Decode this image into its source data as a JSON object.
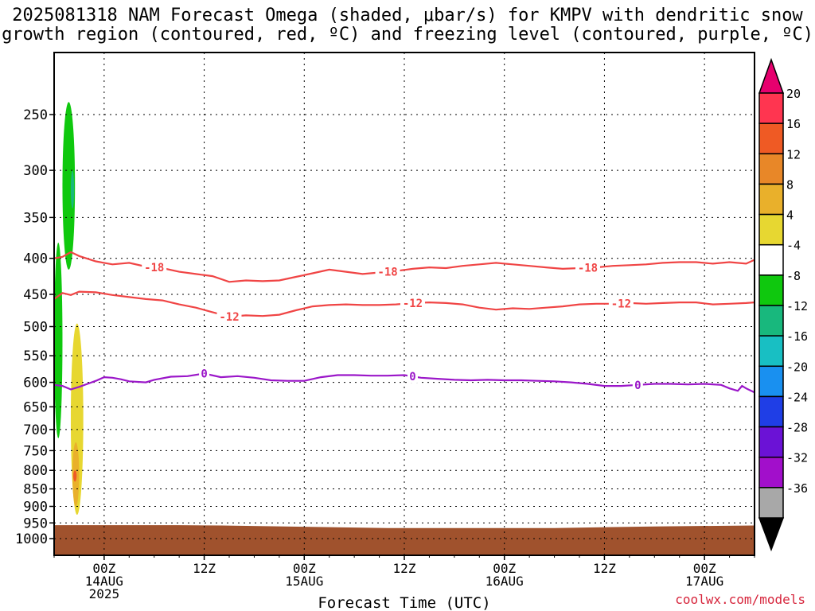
{
  "title_lines": [
    "2025081318 NAM Forecast Omega (shaded, μbar/s) for KMPV with dendritic snow",
    "growth region (contoured, red, ºC) and freezing level (contoured, purple, ºC)"
  ],
  "credit": "coolwx.com/models",
  "chart_data": {
    "type": "contour",
    "xlabel": "Forecast Time (UTC)",
    "x_forecast_hours": [
      0,
      84
    ],
    "x_ticks": [
      {
        "hour": 6,
        "label": "00Z",
        "sub": [
          "14AUG",
          "2025"
        ]
      },
      {
        "hour": 18,
        "label": "12Z",
        "sub": []
      },
      {
        "hour": 30,
        "label": "00Z",
        "sub": [
          "15AUG"
        ]
      },
      {
        "hour": 42,
        "label": "12Z",
        "sub": []
      },
      {
        "hour": 54,
        "label": "00Z",
        "sub": [
          "16AUG"
        ]
      },
      {
        "hour": 66,
        "label": "12Z",
        "sub": []
      },
      {
        "hour": 78,
        "label": "00Z",
        "sub": [
          "17AUG"
        ]
      }
    ],
    "y_axis": "pressure (hPa), log scale, inverted",
    "y_ticks": [
      250,
      300,
      350,
      400,
      450,
      500,
      550,
      600,
      650,
      700,
      750,
      800,
      850,
      900,
      950,
      1000
    ],
    "ylim": [
      1050,
      200
    ],
    "grid": true,
    "colorbar": {
      "labels": [
        "20",
        "16",
        "12",
        "8",
        "4",
        "-4",
        "-8",
        "-12",
        "-16",
        "-20",
        "-24",
        "-28",
        "-32",
        "-36"
      ],
      "colors": [
        "#ff3550",
        "#ef5a24",
        "#e88728",
        "#e9b02b",
        "#e7d731",
        "#ffffff",
        "#0fc80e",
        "#18b87d",
        "#18bfc3",
        "#1990f0",
        "#1f3ee6",
        "#6b12d6",
        "#a20fcb",
        "#a8a8a8"
      ],
      "top_arrow_color": "#e6006e",
      "bottom_arrow_color": "#000000"
    },
    "series": [
      {
        "name": "-18",
        "color": "#f04545",
        "points": [
          [
            0,
            400
          ],
          [
            1,
            398
          ],
          [
            2,
            392
          ],
          [
            3,
            397
          ],
          [
            5,
            404
          ],
          [
            7,
            408
          ],
          [
            9,
            406
          ],
          [
            11,
            411
          ],
          [
            13,
            413
          ],
          [
            15,
            418
          ],
          [
            17,
            421
          ],
          [
            19,
            424
          ],
          [
            21,
            432
          ],
          [
            23,
            430
          ],
          [
            25,
            431
          ],
          [
            27,
            430
          ],
          [
            29,
            425
          ],
          [
            31,
            420
          ],
          [
            33,
            415
          ],
          [
            35,
            418
          ],
          [
            37,
            421
          ],
          [
            39,
            419
          ],
          [
            41,
            417
          ],
          [
            43,
            414
          ],
          [
            45,
            412
          ],
          [
            47,
            413
          ],
          [
            49,
            410
          ],
          [
            51,
            408
          ],
          [
            53,
            406
          ],
          [
            55,
            408
          ],
          [
            57,
            410
          ],
          [
            59,
            412
          ],
          [
            61,
            414
          ],
          [
            63,
            413
          ],
          [
            65,
            412
          ],
          [
            67,
            410
          ],
          [
            69,
            409
          ],
          [
            71,
            408
          ],
          [
            73,
            406
          ],
          [
            75,
            405
          ],
          [
            77,
            405
          ],
          [
            79,
            407
          ],
          [
            81,
            405
          ],
          [
            83,
            407
          ],
          [
            84,
            402
          ]
        ],
        "labels": [
          12,
          40,
          64
        ]
      },
      {
        "name": "-12",
        "color": "#f04545",
        "points": [
          [
            0,
            457
          ],
          [
            1,
            448
          ],
          [
            2,
            451
          ],
          [
            3,
            446
          ],
          [
            5,
            447
          ],
          [
            7,
            451
          ],
          [
            9,
            454
          ],
          [
            11,
            457
          ],
          [
            13,
            459
          ],
          [
            15,
            465
          ],
          [
            17,
            470
          ],
          [
            19,
            477
          ],
          [
            21,
            484
          ],
          [
            23,
            482
          ],
          [
            25,
            483
          ],
          [
            27,
            481
          ],
          [
            29,
            474
          ],
          [
            31,
            468
          ],
          [
            33,
            466
          ],
          [
            35,
            465
          ],
          [
            37,
            466
          ],
          [
            39,
            466
          ],
          [
            41,
            465
          ],
          [
            43,
            463
          ],
          [
            45,
            462
          ],
          [
            47,
            463
          ],
          [
            49,
            465
          ],
          [
            51,
            470
          ],
          [
            53,
            473
          ],
          [
            55,
            471
          ],
          [
            57,
            472
          ],
          [
            59,
            470
          ],
          [
            61,
            468
          ],
          [
            63,
            465
          ],
          [
            65,
            464
          ],
          [
            67,
            464
          ],
          [
            69,
            463
          ],
          [
            71,
            464
          ],
          [
            73,
            463
          ],
          [
            75,
            462
          ],
          [
            77,
            462
          ],
          [
            79,
            465
          ],
          [
            81,
            464
          ],
          [
            83,
            463
          ],
          [
            84,
            462
          ]
        ],
        "labels": [
          21,
          43,
          68
        ]
      },
      {
        "name": "0",
        "color": "#9b17c9",
        "points": [
          [
            0,
            605
          ],
          [
            1,
            607
          ],
          [
            2,
            614
          ],
          [
            3,
            609
          ],
          [
            4,
            603
          ],
          [
            5,
            597
          ],
          [
            6,
            590
          ],
          [
            7,
            591
          ],
          [
            8,
            594
          ],
          [
            9,
            598
          ],
          [
            11,
            600
          ],
          [
            12,
            595
          ],
          [
            14,
            589
          ],
          [
            16,
            588
          ],
          [
            18,
            583
          ],
          [
            20,
            590
          ],
          [
            22,
            588
          ],
          [
            24,
            591
          ],
          [
            26,
            596
          ],
          [
            28,
            597
          ],
          [
            30,
            597
          ],
          [
            32,
            590
          ],
          [
            34,
            586
          ],
          [
            36,
            586
          ],
          [
            38,
            587
          ],
          [
            40,
            587
          ],
          [
            42,
            586
          ],
          [
            44,
            591
          ],
          [
            46,
            593
          ],
          [
            48,
            595
          ],
          [
            50,
            596
          ],
          [
            52,
            595
          ],
          [
            54,
            596
          ],
          [
            56,
            596
          ],
          [
            58,
            597
          ],
          [
            60,
            598
          ],
          [
            62,
            600
          ],
          [
            64,
            603
          ],
          [
            66,
            607
          ],
          [
            68,
            607
          ],
          [
            70,
            605
          ],
          [
            72,
            603
          ],
          [
            74,
            603
          ],
          [
            76,
            604
          ],
          [
            78,
            603
          ],
          [
            80,
            605
          ],
          [
            81,
            612
          ],
          [
            82,
            617
          ],
          [
            82.5,
            607
          ],
          [
            83,
            612
          ],
          [
            84,
            620
          ]
        ],
        "labels": [
          18,
          43,
          70
        ]
      }
    ],
    "omega_shading": [
      {
        "value_range": [
          -8,
          -4
        ],
        "color": "#0fc80e",
        "description": "upward motion, upper levels",
        "hour_range": [
          1,
          2.5
        ],
        "pressure_range": [
          240,
          415
        ]
      },
      {
        "value_range": [
          -12,
          -8
        ],
        "color": "#18b87d",
        "description": "upward motion core",
        "hour_range": [
          2,
          2.4
        ],
        "pressure_range": [
          300,
          340
        ]
      },
      {
        "value_range": [
          -8,
          -4
        ],
        "color": "#0fc80e",
        "description": "upward motion, lower levels",
        "hour_range": [
          0,
          1
        ],
        "pressure_range": [
          380,
          720
        ]
      },
      {
        "value_range": [
          4,
          8
        ],
        "color": "#e7d731",
        "description": "downward motion",
        "hour_range": [
          2,
          3.5
        ],
        "pressure_range": [
          495,
          925
        ]
      },
      {
        "value_range": [
          8,
          12
        ],
        "color": "#e9b02b",
        "description": "downward motion core",
        "hour_range": [
          2.2,
          3
        ],
        "pressure_range": [
          730,
          900
        ]
      },
      {
        "value_range": [
          12,
          16
        ],
        "color": "#ef5a24",
        "description": "downward motion max",
        "hour_range": [
          2.3,
          2.7
        ],
        "pressure_range": [
          800,
          830
        ]
      }
    ],
    "terrain": {
      "color": "#a0522d",
      "pressure_top": [
        [
          0,
          957
        ],
        [
          15,
          957
        ],
        [
          20,
          958
        ],
        [
          30,
          962
        ],
        [
          40,
          966
        ],
        [
          60,
          966
        ],
        [
          72,
          961
        ],
        [
          84,
          958
        ]
      ]
    }
  }
}
